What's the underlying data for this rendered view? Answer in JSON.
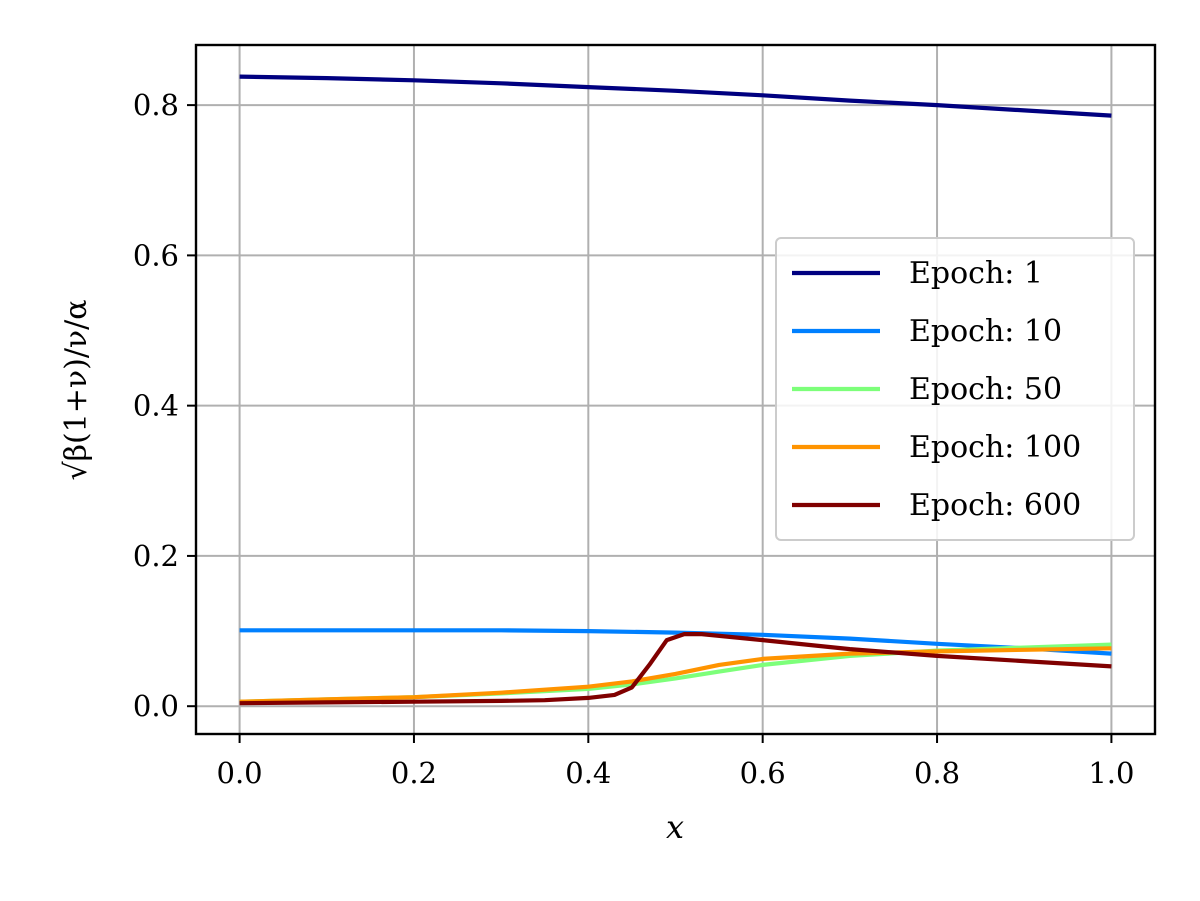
{
  "chart_data": {
    "type": "line",
    "title": "",
    "xlabel": "x",
    "ylabel": "√β(1+ν)/ν/α",
    "xlim": [
      -0.05,
      1.05
    ],
    "ylim": [
      -0.037,
      0.88
    ],
    "xticks": [
      0.0,
      0.2,
      0.4,
      0.6,
      0.8,
      1.0
    ],
    "xtick_labels": [
      "0.0",
      "0.2",
      "0.4",
      "0.6",
      "0.8",
      "1.0"
    ],
    "yticks": [
      0.0,
      0.2,
      0.4,
      0.6,
      0.8
    ],
    "ytick_labels": [
      "0.0",
      "0.2",
      "0.4",
      "0.6",
      "0.8"
    ],
    "grid": true,
    "legend_position": "center-right",
    "series": [
      {
        "name": "Epoch: 1",
        "color": "#000080",
        "x": [
          0.0,
          0.1,
          0.2,
          0.3,
          0.4,
          0.5,
          0.6,
          0.7,
          0.8,
          0.9,
          1.0
        ],
        "y": [
          0.838,
          0.836,
          0.833,
          0.829,
          0.824,
          0.819,
          0.813,
          0.806,
          0.8,
          0.793,
          0.786
        ]
      },
      {
        "name": "Epoch: 10",
        "color": "#0080ff",
        "x": [
          0.0,
          0.1,
          0.2,
          0.3,
          0.4,
          0.5,
          0.6,
          0.7,
          0.8,
          0.9,
          1.0
        ],
        "y": [
          0.101,
          0.101,
          0.101,
          0.101,
          0.1,
          0.098,
          0.095,
          0.09,
          0.083,
          0.077,
          0.07
        ]
      },
      {
        "name": "Epoch: 50",
        "color": "#7dff7a",
        "x": [
          0.0,
          0.1,
          0.2,
          0.3,
          0.4,
          0.45,
          0.5,
          0.55,
          0.6,
          0.7,
          0.8,
          0.9,
          1.0
        ],
        "y": [
          0.006,
          0.009,
          0.012,
          0.017,
          0.023,
          0.029,
          0.037,
          0.046,
          0.055,
          0.067,
          0.074,
          0.078,
          0.082
        ]
      },
      {
        "name": "Epoch: 100",
        "color": "#ff9400",
        "x": [
          0.0,
          0.1,
          0.2,
          0.3,
          0.4,
          0.45,
          0.5,
          0.55,
          0.6,
          0.7,
          0.8,
          0.9,
          1.0
        ],
        "y": [
          0.006,
          0.009,
          0.012,
          0.018,
          0.026,
          0.033,
          0.043,
          0.055,
          0.063,
          0.07,
          0.073,
          0.075,
          0.077
        ]
      },
      {
        "name": "Epoch: 600",
        "color": "#800000",
        "x": [
          0.0,
          0.1,
          0.2,
          0.3,
          0.35,
          0.4,
          0.43,
          0.45,
          0.47,
          0.49,
          0.51,
          0.53,
          0.6,
          0.7,
          0.8,
          0.9,
          1.0
        ],
        "y": [
          0.004,
          0.005,
          0.006,
          0.007,
          0.008,
          0.011,
          0.015,
          0.025,
          0.055,
          0.088,
          0.096,
          0.096,
          0.088,
          0.076,
          0.067,
          0.06,
          0.053
        ]
      }
    ]
  }
}
